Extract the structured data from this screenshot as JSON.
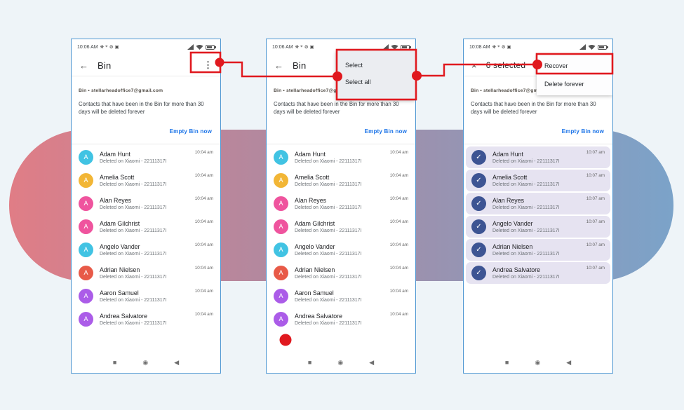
{
  "colors": {
    "page_bg": "#eef4f8",
    "pill_left": "#e07d86",
    "pill_mid": "#a78ba5",
    "pill_right": "#7ba3c9",
    "phone_border": "#4f97d2",
    "annotation_red": "#e0191f",
    "link_blue": "#1a73e8",
    "selected_row_bg": "#e6e3f1",
    "selected_check_bg": "#3d5493"
  },
  "shared": {
    "account_line": "Bin • stellarheadoffice7@gmail.com",
    "description": "Contacts that have been in the Bin for more than 30 days will be deleted forever",
    "empty_bin_label": "Empty Bin now",
    "deleted_subtitle": "Deleted on Xiaomi - 22111317I",
    "status_icons_left": [
      {
        "name": "data-saver-icon",
        "glyph": "❋"
      },
      {
        "name": "location-icon",
        "glyph": "⌖"
      },
      {
        "name": "settings-icon",
        "glyph": "⚙"
      },
      {
        "name": "calendar-icon",
        "glyph": "▣"
      }
    ],
    "nav": {
      "recents": "■",
      "home": "◉",
      "back": "◀"
    },
    "check_glyph": "✓"
  },
  "phones": [
    {
      "status_time": "10:06 AM",
      "left_icon": "←",
      "title": "Bin",
      "kebab": "⋮",
      "contacts": [
        {
          "name": "Adam Hunt",
          "initial": "A",
          "color": "#41c3e3",
          "time": "10:04 am"
        },
        {
          "name": "Amelia Scott",
          "initial": "A",
          "color": "#f2b636",
          "time": "10:04 am"
        },
        {
          "name": "Alan Reyes",
          "initial": "A",
          "color": "#ef549e",
          "time": "10:04 am"
        },
        {
          "name": "Adam Gilchrist",
          "initial": "A",
          "color": "#ef549e",
          "time": "10:04 am"
        },
        {
          "name": "Angelo Vander",
          "initial": "A",
          "color": "#41c3e3",
          "time": "10:04 am"
        },
        {
          "name": "Adrian Nielsen",
          "initial": "A",
          "color": "#e85a48",
          "time": "10:04 am"
        },
        {
          "name": "Aaron Samuel",
          "initial": "A",
          "color": "#ab5ce8",
          "time": "10:04 am"
        },
        {
          "name": "Andrea Salvatore",
          "initial": "A",
          "color": "#ab5ce8",
          "time": "10:04 am"
        }
      ]
    },
    {
      "status_time": "10:06 AM",
      "left_icon": "←",
      "title": "Bin",
      "kebab": "⋮",
      "menu": {
        "items": [
          "Select",
          "Select all"
        ]
      },
      "contacts": [
        {
          "name": "Adam Hunt",
          "initial": "A",
          "color": "#41c3e3",
          "time": "10:04 am"
        },
        {
          "name": "Amelia Scott",
          "initial": "A",
          "color": "#f2b636",
          "time": "10:04 am"
        },
        {
          "name": "Alan Reyes",
          "initial": "A",
          "color": "#ef549e",
          "time": "10:04 am"
        },
        {
          "name": "Adam Gilchrist",
          "initial": "A",
          "color": "#ef549e",
          "time": "10:04 am"
        },
        {
          "name": "Angelo Vander",
          "initial": "A",
          "color": "#41c3e3",
          "time": "10:04 am"
        },
        {
          "name": "Adrian Nielsen",
          "initial": "A",
          "color": "#e85a48",
          "time": "10:04 am"
        },
        {
          "name": "Aaron Samuel",
          "initial": "A",
          "color": "#ab5ce8",
          "time": "10:04 am"
        },
        {
          "name": "Andrea Salvatore",
          "initial": "A",
          "color": "#ab5ce8",
          "time": "10:04 am"
        }
      ]
    },
    {
      "status_time": "10:08 AM",
      "left_icon": "×",
      "title": "6 selected",
      "menu": {
        "items": [
          "Recover",
          "Delete forever"
        ]
      },
      "contacts": [
        {
          "name": "Adam Hunt",
          "selected": true,
          "time": "10:07 am"
        },
        {
          "name": "Amelia Scott",
          "selected": true,
          "time": "10:07 am"
        },
        {
          "name": "Alan Reyes",
          "selected": true,
          "time": "10:07 am"
        },
        {
          "name": "Angelo Vander",
          "selected": true,
          "time": "10:07 am"
        },
        {
          "name": "Adrian Nielsen",
          "selected": true,
          "time": "10:07 am"
        },
        {
          "name": "Andrea Salvatore",
          "selected": true,
          "time": "10:07 am"
        }
      ]
    }
  ]
}
